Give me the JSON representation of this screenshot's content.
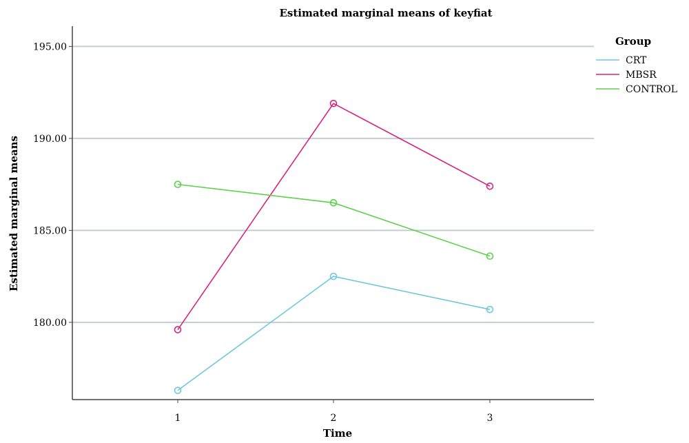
{
  "chart_data": {
    "type": "line",
    "title": "Estimated marginal means of keyfiat",
    "xlabel": "Time",
    "ylabel": "Estimated marginal means",
    "x": [
      "1",
      "2",
      "3"
    ],
    "ylim": [
      175.8,
      196.1
    ],
    "yticks": [
      180,
      185,
      190,
      195
    ],
    "ytick_labels": [
      "180.00",
      "185.00",
      "190.00",
      "195.00"
    ],
    "grid": "horizontal",
    "legend": {
      "title": "Group",
      "placement": "right"
    },
    "series": [
      {
        "name": "CRT",
        "color": "#6cc8e0",
        "values": [
          176.3,
          182.5,
          180.7
        ]
      },
      {
        "name": "MBSR",
        "color": "#d6247f",
        "values": [
          179.6,
          191.9,
          187.4
        ]
      },
      {
        "name": "CONTROL",
        "color": "#5cd14a",
        "values": [
          187.5,
          186.5,
          183.6
        ]
      }
    ]
  }
}
